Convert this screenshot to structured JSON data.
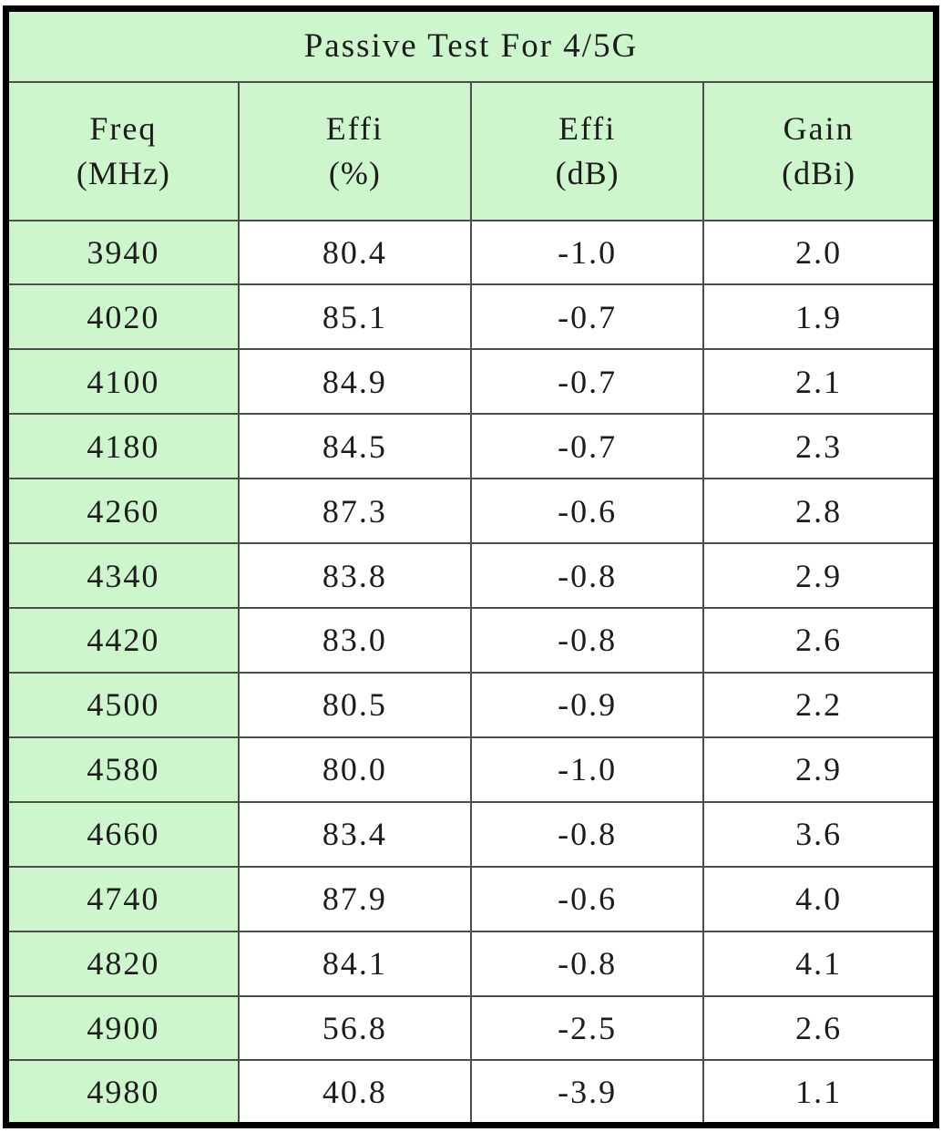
{
  "chart_data": {
    "type": "table",
    "title": "Passive Test For 4/5G",
    "columns": [
      {
        "label": "Freq",
        "unit": "(MHz)"
      },
      {
        "label": "Effi",
        "unit": "(%)"
      },
      {
        "label": "Effi",
        "unit": "(dB)"
      },
      {
        "label": "Gain",
        "unit": "(dBi)"
      }
    ],
    "rows": [
      [
        "3940",
        "80.4",
        "-1.0",
        "2.0"
      ],
      [
        "4020",
        "85.1",
        "-0.7",
        "1.9"
      ],
      [
        "4100",
        "84.9",
        "-0.7",
        "2.1"
      ],
      [
        "4180",
        "84.5",
        "-0.7",
        "2.3"
      ],
      [
        "4260",
        "87.3",
        "-0.6",
        "2.8"
      ],
      [
        "4340",
        "83.8",
        "-0.8",
        "2.9"
      ],
      [
        "4420",
        "83.0",
        "-0.8",
        "2.6"
      ],
      [
        "4500",
        "80.5",
        "-0.9",
        "2.2"
      ],
      [
        "4580",
        "80.0",
        "-1.0",
        "2.9"
      ],
      [
        "4660",
        "83.4",
        "-0.8",
        "3.6"
      ],
      [
        "4740",
        "87.9",
        "-0.6",
        "4.0"
      ],
      [
        "4820",
        "84.1",
        "-0.8",
        "4.1"
      ],
      [
        "4900",
        "56.8",
        "-2.5",
        "2.6"
      ],
      [
        "4980",
        "40.8",
        "-3.9",
        "1.1"
      ]
    ],
    "colors": {
      "highlight_bg": "#cdf6cd",
      "cell_bg": "#ffffff",
      "grid_line": "#4d4d4d",
      "outer_border": "#000000",
      "text": "#1c1c1c"
    }
  }
}
